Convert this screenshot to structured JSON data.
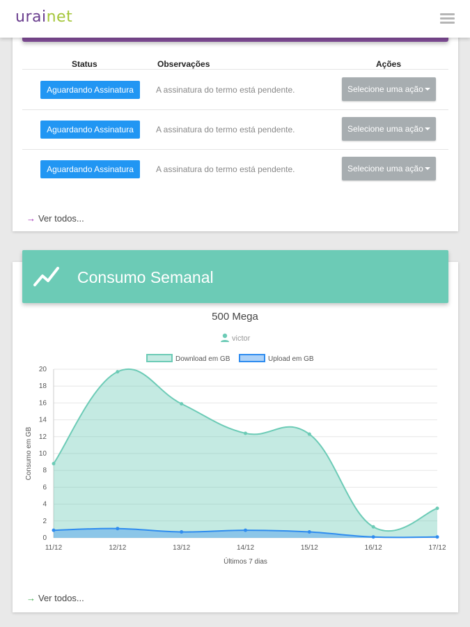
{
  "header": {
    "logo_part1": "urai",
    "logo_part2": "net",
    "logo_colors": [
      "#6a3e8e",
      "#a4c639"
    ],
    "menu_icon": "hamburger-icon"
  },
  "contracts": {
    "columns": [
      "Status",
      "Observações",
      "Ações"
    ],
    "rows": [
      {
        "status": "Aguardando Assinatura",
        "observation": "A assinatura do termo está pendente.",
        "action": "Selecione uma ação"
      },
      {
        "status": "Aguardando Assinatura",
        "observation": "A assinatura do termo está pendente.",
        "action": "Selecione uma ação"
      },
      {
        "status": "Aguardando Assinatura",
        "observation": "A assinatura do termo está pendente.",
        "action": "Selecione uma ação"
      }
    ],
    "see_all": "Ver todos..."
  },
  "consumption": {
    "title": "Consumo Semanal",
    "icon": "trending-up-icon",
    "plan": "500 Mega",
    "user": "victor",
    "see_all": "Ver todos..."
  },
  "chart_data": {
    "type": "area",
    "categories": [
      "11/12",
      "12/12",
      "13/12",
      "14/12",
      "15/12",
      "16/12",
      "17/12"
    ],
    "series": [
      {
        "name": "Download em GB",
        "values": [
          8.8,
          19.7,
          15.9,
          12.4,
          12.3,
          1.3,
          3.5
        ],
        "color": "#6ccbb6"
      },
      {
        "name": "Upload em GB",
        "values": [
          0.9,
          1.1,
          0.7,
          0.9,
          0.7,
          0.1,
          0.1
        ],
        "color": "#4a9cf0"
      }
    ],
    "xlabel": "Últimos 7 dias",
    "ylabel": "Consumo em GB",
    "ylim": [
      0,
      20
    ],
    "yticks": [
      0,
      2,
      4,
      6,
      8,
      10,
      12,
      14,
      16,
      18,
      20
    ],
    "legend": "top",
    "grid": true
  }
}
